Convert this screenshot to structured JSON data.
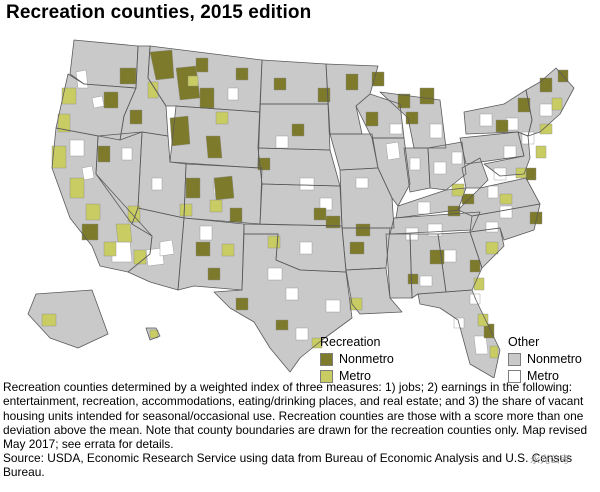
{
  "title": "Recreation counties, 2015 edition",
  "legend": {
    "recreation": {
      "heading": "Recreation",
      "items": [
        {
          "label": "Nonmetro",
          "color": "#7d7a2b"
        },
        {
          "label": "Metro",
          "color": "#c8cc62"
        }
      ]
    },
    "other": {
      "heading": "Other",
      "items": [
        {
          "label": "Nonmetro",
          "color": "#c9c9c9"
        },
        {
          "label": "Metro",
          "color": "#ffffff"
        }
      ]
    }
  },
  "colors": {
    "state_border": "#5a5a5a",
    "county_border": "#8e8e8e"
  },
  "caption": "Recreation counties determined by a weighted index of three measures: 1) jobs; 2) earnings in the following: entertainment, recreation, accommodations, eating/drinking places, and real estate; and 3) the share of vacant housing units intended for seasonal/occasional use. Recreation counties are those with a score more than one deviation above the mean. Note that county boundaries are drawn for the recreation counties only. Map revised May 2017; see errata for details.",
  "source": "Source: USDA, Economic Research Service using data from Bureau of Economic Analysis and U.S. Census Bureau.",
  "watermark": "永光公考"
}
